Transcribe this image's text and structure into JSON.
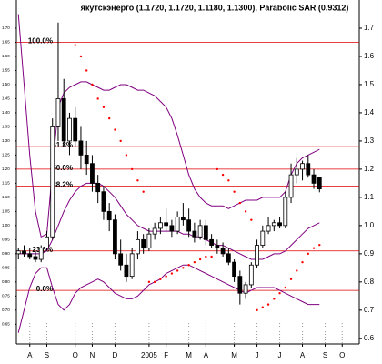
{
  "chart_data": {
    "type": "candlestick",
    "title": "якутскэнерго (1.1720, 1.1720, 1.1180, 1.1300), Parabolic SAR (0.9312)",
    "x": [
      0,
      1,
      2,
      3,
      4,
      5,
      6,
      7,
      8,
      9,
      10,
      11,
      12,
      13,
      14,
      15,
      16,
      17,
      18,
      19,
      20,
      21,
      22,
      23,
      24,
      25,
      26,
      27,
      28,
      29,
      30,
      31,
      32,
      33,
      34,
      35,
      36,
      37,
      38,
      39,
      40,
      41,
      42,
      43,
      44,
      45,
      46,
      47,
      48,
      49,
      50,
      51,
      52,
      53
    ],
    "xlim": [
      -1,
      60
    ],
    "xticks": [
      {
        "value": 2,
        "label": "A"
      },
      {
        "value": 5,
        "label": "S"
      },
      {
        "value": 10,
        "label": "O"
      },
      {
        "value": 13,
        "label": "N"
      },
      {
        "value": 17,
        "label": "D"
      },
      {
        "value": 23,
        "label": "2005"
      },
      {
        "value": 26,
        "label": "F"
      },
      {
        "value": 30,
        "label": "M"
      },
      {
        "value": 33,
        "label": "A"
      },
      {
        "value": 38,
        "label": "M"
      },
      {
        "value": 42,
        "label": "J"
      },
      {
        "value": 46,
        "label": "J"
      },
      {
        "value": 50,
        "label": "A"
      },
      {
        "value": 54,
        "label": "S"
      },
      {
        "value": 57,
        "label": "O"
      }
    ],
    "ylim": [
      0.58,
      1.8
    ],
    "yticks": [
      1.7,
      1.6,
      1.5,
      1.4,
      1.3,
      1.2,
      1.1,
      {
        "value": 1,
        "label": "1.0"
      },
      0.9,
      0.8,
      0.7,
      0.6
    ],
    "yticks_left": [
      {
        "value": 1.7,
        "label": "1.70"
      },
      1.65,
      {
        "value": 1.6,
        "label": "1.60"
      },
      1.55,
      {
        "value": 1.5,
        "label": "1.50"
      },
      1.45,
      {
        "value": 1.4,
        "label": "1.40"
      },
      1.35,
      {
        "value": 1.3,
        "label": "1.30"
      },
      1.25,
      {
        "value": 1.2,
        "label": "1.20"
      },
      1.15,
      {
        "value": 1.1,
        "label": "1.10"
      },
      1.05,
      {
        "value": 1,
        "label": "1.00"
      },
      0.95,
      {
        "value": 0.9,
        "label": "0.90"
      },
      0.85,
      {
        "value": 0.8,
        "label": "0.80"
      },
      0.75,
      {
        "value": 0.7,
        "label": "0.70"
      },
      0.65
    ],
    "open": [
      0.9,
      0.91,
      0.9,
      0.89,
      0.88,
      0.92,
      0.96,
      1.35,
      1.45,
      1.3,
      1.38,
      1.3,
      1.25,
      1.22,
      1.15,
      1.12,
      1.05,
      1.02,
      0.9,
      0.86,
      0.82,
      0.9,
      0.95,
      0.92,
      0.97,
      0.99,
      1.01,
      1.0,
      0.98,
      1.03,
      1.02,
      0.98,
      0.96,
      1.0,
      0.95,
      0.93,
      0.92,
      0.9,
      0.87,
      0.82,
      0.76,
      0.79,
      0.86,
      0.93,
      0.98,
      1.0,
      1.01,
      1.0,
      1.1,
      1.18,
      1.2,
      1.22,
      1.18,
      1.172
    ],
    "high": [
      0.92,
      0.93,
      0.92,
      0.91,
      0.93,
      0.98,
      1.38,
      1.72,
      1.52,
      1.4,
      1.42,
      1.35,
      1.3,
      1.25,
      1.18,
      1.14,
      1.08,
      1.04,
      0.95,
      0.9,
      0.92,
      0.98,
      0.97,
      0.99,
      1.01,
      1.03,
      1.06,
      1.02,
      1.05,
      1.08,
      1.06,
      1.01,
      1.02,
      1.02,
      0.97,
      0.95,
      0.94,
      0.92,
      0.88,
      0.84,
      0.8,
      0.87,
      0.95,
      1.0,
      1.03,
      1.02,
      1.03,
      1.12,
      1.22,
      1.24,
      1.23,
      1.25,
      1.2,
      1.172
    ],
    "low": [
      0.88,
      0.89,
      0.88,
      0.87,
      0.87,
      0.91,
      0.95,
      1.3,
      1.28,
      1.25,
      1.28,
      1.2,
      1.18,
      1.12,
      1.08,
      1.02,
      0.98,
      0.88,
      0.84,
      0.8,
      0.81,
      0.88,
      0.9,
      0.91,
      0.95,
      0.97,
      0.98,
      0.96,
      0.97,
      1.0,
      0.96,
      0.94,
      0.95,
      0.93,
      0.92,
      0.9,
      0.89,
      0.86,
      0.8,
      0.72,
      0.74,
      0.78,
      0.85,
      0.92,
      0.97,
      0.98,
      0.99,
      0.99,
      1.08,
      1.15,
      1.16,
      1.17,
      1.13,
      1.118
    ],
    "close": [
      0.91,
      0.9,
      0.89,
      0.88,
      0.92,
      0.96,
      1.35,
      1.45,
      1.3,
      1.38,
      1.3,
      1.25,
      1.22,
      1.15,
      1.12,
      1.05,
      1.02,
      0.9,
      0.86,
      0.82,
      0.9,
      0.95,
      0.92,
      0.97,
      0.99,
      1.01,
      1.0,
      0.98,
      1.03,
      1.02,
      0.98,
      0.96,
      1.0,
      0.95,
      0.93,
      0.92,
      0.9,
      0.87,
      0.82,
      0.76,
      0.79,
      0.86,
      0.93,
      0.98,
      1.0,
      1.01,
      1.0,
      1.1,
      1.18,
      1.2,
      1.22,
      1.18,
      1.15,
      1.13
    ],
    "bollinger": {
      "color": "#800080",
      "upper": [
        1.75,
        1.5,
        1.25,
        1.05,
        0.96,
        0.97,
        1.2,
        1.42,
        1.47,
        1.49,
        1.5,
        1.51,
        1.51,
        1.5,
        1.49,
        1.48,
        1.48,
        1.49,
        1.5,
        1.5,
        1.49,
        1.48,
        1.48,
        1.47,
        1.46,
        1.44,
        1.42,
        1.38,
        1.32,
        1.25,
        1.18,
        1.13,
        1.1,
        1.08,
        1.07,
        1.07,
        1.07,
        1.06,
        1.07,
        1.08,
        1.09,
        1.09,
        1.09,
        1.1,
        1.1,
        1.1,
        1.1,
        1.12,
        1.18,
        1.22,
        1.24,
        1.25,
        1.26,
        1.27
      ],
      "middle": [
        0.9,
        0.9,
        0.9,
        0.9,
        0.9,
        0.91,
        0.95,
        1.0,
        1.05,
        1.09,
        1.12,
        1.14,
        1.15,
        1.15,
        1.15,
        1.14,
        1.12,
        1.1,
        1.07,
        1.04,
        1.02,
        1.0,
        0.99,
        0.98,
        0.98,
        0.98,
        0.98,
        0.98,
        0.98,
        0.97,
        0.97,
        0.96,
        0.96,
        0.95,
        0.94,
        0.93,
        0.93,
        0.92,
        0.91,
        0.9,
        0.89,
        0.88,
        0.88,
        0.88,
        0.89,
        0.9,
        0.9,
        0.91,
        0.93,
        0.95,
        0.97,
        0.99,
        1.0,
        1.01
      ],
      "lower": [
        0.62,
        0.7,
        0.78,
        0.83,
        0.85,
        0.85,
        0.78,
        0.72,
        0.7,
        0.72,
        0.76,
        0.78,
        0.79,
        0.8,
        0.81,
        0.8,
        0.78,
        0.76,
        0.75,
        0.74,
        0.74,
        0.75,
        0.77,
        0.79,
        0.8,
        0.81,
        0.83,
        0.84,
        0.85,
        0.86,
        0.86,
        0.85,
        0.84,
        0.83,
        0.82,
        0.81,
        0.8,
        0.79,
        0.78,
        0.77,
        0.76,
        0.77,
        0.78,
        0.78,
        0.78,
        0.78,
        0.77,
        0.76,
        0.75,
        0.74,
        0.73,
        0.72,
        0.72,
        0.72
      ]
    },
    "sar": {
      "color": "#ff0000",
      "values": [
        null,
        null,
        null,
        null,
        null,
        null,
        null,
        null,
        null,
        null,
        1.64,
        1.6,
        1.55,
        1.5,
        1.45,
        1.42,
        1.38,
        1.34,
        1.3,
        1.25,
        1.2,
        1.16,
        1.12,
        0.8,
        0.8,
        0.81,
        0.82,
        0.83,
        0.84,
        0.85,
        0.86,
        0.87,
        0.88,
        0.89,
        0.89,
        1.2,
        1.18,
        1.16,
        1.12,
        1.08,
        1.05,
        1.02,
        0.7,
        0.71,
        0.72,
        0.74,
        0.76,
        0.78,
        0.81,
        0.84,
        0.87,
        0.9,
        0.92,
        0.9312
      ]
    },
    "fibonacci": {
      "color": "#e00000",
      "levels": [
        {
          "label": "100.0%",
          "value": 1.65
        },
        {
          "label": "61.8%",
          "value": 1.28
        },
        {
          "label": "50.0%",
          "value": 1.2
        },
        {
          "label": "38.2%",
          "value": 1.14
        },
        {
          "label": "23.6%",
          "value": 0.91
        },
        {
          "label": "0.0%",
          "value": 0.77
        }
      ]
    }
  }
}
